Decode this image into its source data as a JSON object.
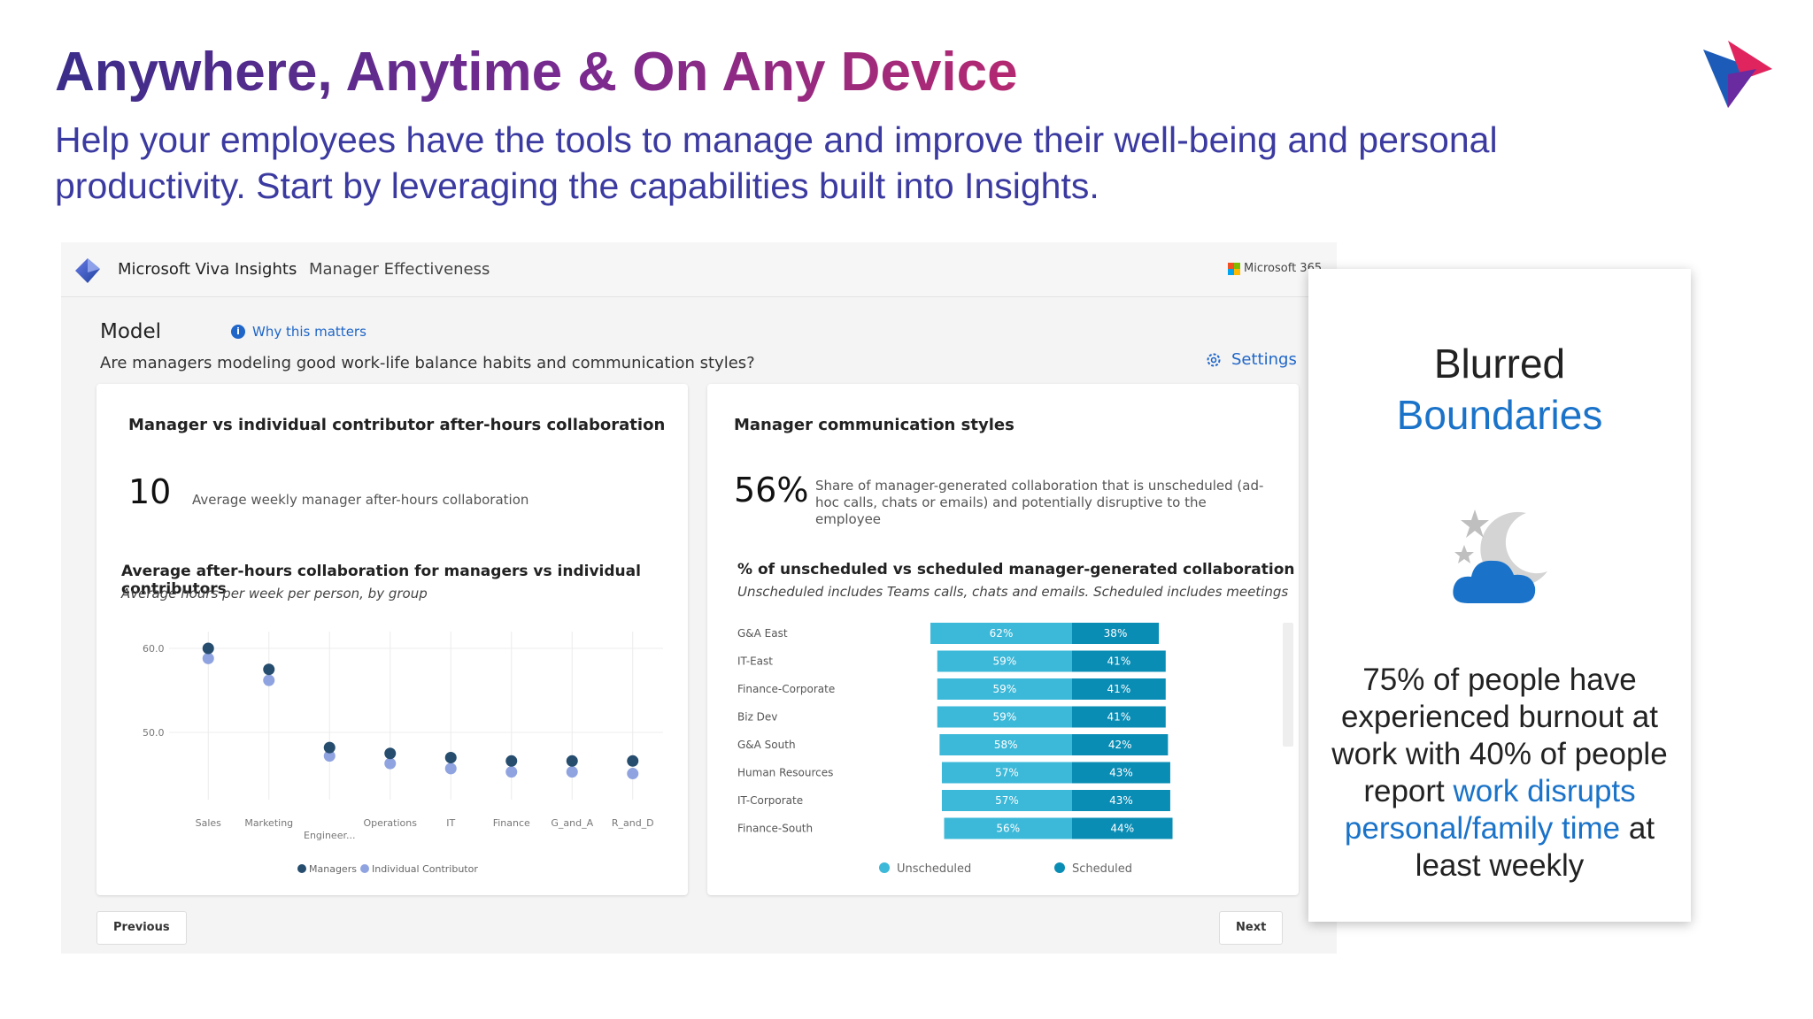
{
  "slide": {
    "title": "Anywhere, Anytime & On Any Device",
    "subtitle": "Help your employees have the tools to manage and improve their well-being and personal productivity. Start by leveraging the capabilities built into Insights."
  },
  "app": {
    "name": "Microsoft Viva Insights",
    "section": "Manager Effectiveness",
    "ms365_label": "Microsoft 365"
  },
  "model": {
    "title": "Model",
    "why_link": "Why this matters",
    "question": "Are managers modeling good work-life balance habits and communication styles?",
    "settings_label": "Settings"
  },
  "left_card": {
    "title": "Manager vs individual contributor after-hours collaboration",
    "big_number": "10",
    "big_desc": "Average weekly manager after-hours collaboration",
    "chart_title": "Average after-hours collaboration for managers vs individual contributors",
    "chart_note": "Average hours per week per person, by group"
  },
  "right_card": {
    "title": "Manager communication styles",
    "big_number": "56%",
    "big_desc": "Share of manager-generated collaboration that is unscheduled (ad-hoc calls, chats or emails) and potentially disruptive to the employee",
    "chart_title": "% of unscheduled vs scheduled manager-generated collaboration",
    "chart_note": "Unscheduled includes Teams calls, chats and emails. Scheduled includes meetings"
  },
  "buttons": {
    "previous": "Previous",
    "next": "Next"
  },
  "info_card": {
    "heading1": "Blurred",
    "heading2": "Boundaries",
    "body_1": "75% of people have experienced burnout at work with 40% of people report ",
    "body_highlight": "work disrupts personal/family time",
    "body_2": " at least weekly"
  },
  "colors": {
    "managers": "#264d6e",
    "individual": "#8fa3e0",
    "unscheduled": "#3cb8d8",
    "scheduled": "#0a8db5",
    "accent_blue": "#1a73c9"
  },
  "chart_data": [
    {
      "type": "scatter",
      "categories": [
        "Sales",
        "Marketing",
        "Engineer...",
        "Operations",
        "IT",
        "Finance",
        "G_and_A",
        "R_and_D"
      ],
      "series": [
        {
          "name": "Managers",
          "values": [
            60.0,
            57.5,
            48.2,
            47.5,
            47.0,
            46.6,
            46.6,
            46.6
          ]
        },
        {
          "name": "Individual Contributor",
          "values": [
            58.8,
            56.2,
            47.2,
            46.3,
            45.7,
            45.3,
            45.3,
            45.1
          ]
        }
      ],
      "yticks": [
        "60.0",
        "50.0"
      ],
      "ylim": [
        42,
        62
      ],
      "legend": [
        "Managers",
        "Individual Contributor"
      ]
    },
    {
      "type": "bar",
      "stacked": true,
      "orientation": "horizontal",
      "categories": [
        "G&A East",
        "IT-East",
        "Finance-Corporate",
        "Biz Dev",
        "G&A South",
        "Human Resources",
        "IT-Corporate",
        "Finance-South"
      ],
      "series": [
        {
          "name": "Unscheduled",
          "values": [
            62,
            59,
            59,
            59,
            58,
            57,
            57,
            56
          ]
        },
        {
          "name": "Scheduled",
          "values": [
            38,
            41,
            41,
            41,
            42,
            43,
            43,
            44
          ]
        }
      ],
      "legend": [
        "Unscheduled",
        "Scheduled"
      ]
    }
  ]
}
